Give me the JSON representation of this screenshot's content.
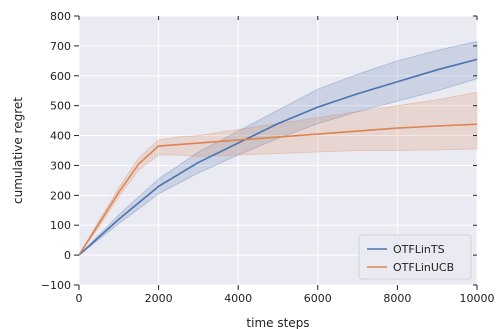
{
  "chart_data": {
    "type": "line",
    "title": "",
    "xlabel": "time steps",
    "ylabel": "cumulative regret",
    "xlim": [
      0,
      10000
    ],
    "ylim": [
      -100,
      800
    ],
    "xticks": [
      0,
      2000,
      4000,
      6000,
      8000,
      10000
    ],
    "xtick_labels": [
      "0",
      "2000",
      "4000",
      "6000",
      "8000",
      "10000"
    ],
    "yticks": [
      -100,
      0,
      100,
      200,
      300,
      400,
      500,
      600,
      700,
      800
    ],
    "ytick_labels": [
      "−100",
      "0",
      "100",
      "200",
      "300",
      "400",
      "500",
      "600",
      "700",
      "800"
    ],
    "grid": true,
    "legend_position": "lower-right",
    "series": [
      {
        "name": "OTFLinTS",
        "color": "#4c72b0",
        "x": [
          0,
          1000,
          2000,
          3000,
          4000,
          5000,
          6000,
          7000,
          8000,
          9000,
          10000
        ],
        "y": [
          0,
          120,
          230,
          310,
          375,
          440,
          495,
          540,
          580,
          620,
          655
        ],
        "lower": [
          0,
          105,
          205,
          275,
          335,
          390,
          440,
          480,
          515,
          550,
          590
        ],
        "upper": [
          0,
          135,
          255,
          345,
          415,
          485,
          555,
          605,
          650,
          685,
          715
        ]
      },
      {
        "name": "OTFLinUCB",
        "color": "#dd8452",
        "x": [
          0,
          500,
          1000,
          1500,
          2000,
          2500,
          3000,
          4000,
          5000,
          6000,
          7000,
          8000,
          9000,
          10000
        ],
        "y": [
          0,
          105,
          210,
          305,
          365,
          370,
          375,
          385,
          395,
          405,
          415,
          425,
          432,
          438
        ],
        "lower": [
          0,
          95,
          195,
          285,
          335,
          335,
          330,
          335,
          340,
          345,
          350,
          350,
          352,
          355
        ],
        "upper": [
          0,
          115,
          225,
          325,
          385,
          395,
          400,
          420,
          440,
          460,
          480,
          500,
          520,
          545
        ]
      }
    ]
  }
}
